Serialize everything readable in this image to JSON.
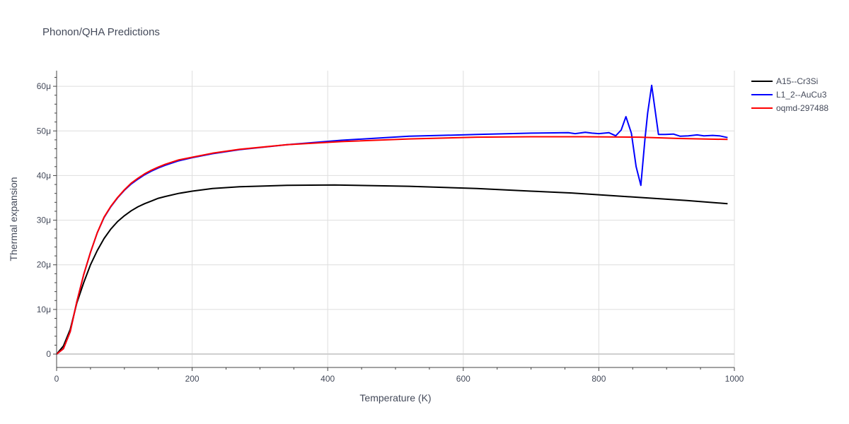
{
  "chart_data": {
    "type": "line",
    "title": "Phonon/QHA Predictions",
    "xlabel": "Temperature (K)",
    "ylabel": "Thermal expansion",
    "xlim": [
      0,
      1000
    ],
    "ylim": [
      -3,
      63.5
    ],
    "x_ticks": [
      0,
      200,
      400,
      600,
      800,
      1000
    ],
    "x_tick_labels": [
      "0",
      "200",
      "400",
      "600",
      "800",
      "1000"
    ],
    "y_ticks": [
      0,
      10,
      20,
      30,
      40,
      50,
      60
    ],
    "y_tick_labels": [
      "0",
      "10μ",
      "20μ",
      "30μ",
      "40μ",
      "50μ",
      "60μ"
    ],
    "grid": true,
    "legend_position": "top-right",
    "series": [
      {
        "name": "A15--Cr3Si",
        "color": "#000000",
        "x": [
          0,
          10,
          20,
          30,
          40,
          50,
          60,
          70,
          80,
          90,
          100,
          110,
          120,
          130,
          140,
          150,
          160,
          180,
          200,
          230,
          270,
          340,
          410,
          520,
          620,
          700,
          760,
          800,
          870,
          930,
          990
        ],
        "y": [
          0,
          1.8,
          5.5,
          11.5,
          16,
          20,
          23.2,
          25.9,
          28,
          29.7,
          31,
          32.1,
          33,
          33.7,
          34.3,
          34.9,
          35.3,
          36,
          36.5,
          37.1,
          37.5,
          37.8,
          37.9,
          37.6,
          37.1,
          36.5,
          36.1,
          35.7,
          35.0,
          34.4,
          33.7
        ]
      },
      {
        "name": "L1_2--AuCu3",
        "color": "#0000ff",
        "x": [
          0,
          10,
          20,
          30,
          40,
          50,
          60,
          70,
          80,
          90,
          100,
          110,
          120,
          130,
          140,
          150,
          160,
          180,
          200,
          230,
          270,
          340,
          420,
          520,
          620,
          700,
          755,
          765,
          780,
          790,
          800,
          815,
          825,
          833,
          840,
          848,
          855,
          862,
          868,
          872,
          878,
          888,
          898,
          910,
          920,
          932,
          945,
          955,
          968,
          978,
          990
        ],
        "y": [
          0,
          1.2,
          5,
          11.8,
          17.8,
          22.8,
          27.2,
          30.6,
          33,
          35,
          36.7,
          38.1,
          39.2,
          40.2,
          41,
          41.7,
          42.3,
          43.3,
          44,
          44.9,
          45.8,
          46.9,
          47.9,
          48.8,
          49.2,
          49.5,
          49.6,
          49.4,
          49.7,
          49.5,
          49.4,
          49.6,
          48.9,
          50.2,
          53.2,
          49.5,
          42,
          37.8,
          48,
          54,
          60.2,
          49.2,
          49.2,
          49.3,
          48.8,
          48.9,
          49.1,
          48.9,
          49.0,
          48.9,
          48.5
        ]
      },
      {
        "name": "oqmd-297488",
        "color": "#ff0000",
        "x": [
          0,
          10,
          20,
          30,
          40,
          50,
          60,
          70,
          80,
          90,
          100,
          110,
          120,
          130,
          140,
          150,
          160,
          180,
          200,
          230,
          270,
          340,
          420,
          520,
          620,
          700,
          780,
          860,
          920,
          990
        ],
        "y": [
          0,
          1.2,
          5,
          11.8,
          17.8,
          22.8,
          27.2,
          30.7,
          33.1,
          35.1,
          36.8,
          38.3,
          39.4,
          40.4,
          41.2,
          41.9,
          42.5,
          43.5,
          44.1,
          45,
          45.9,
          46.9,
          47.6,
          48.2,
          48.6,
          48.7,
          48.7,
          48.6,
          48.3,
          48.1
        ]
      }
    ]
  }
}
